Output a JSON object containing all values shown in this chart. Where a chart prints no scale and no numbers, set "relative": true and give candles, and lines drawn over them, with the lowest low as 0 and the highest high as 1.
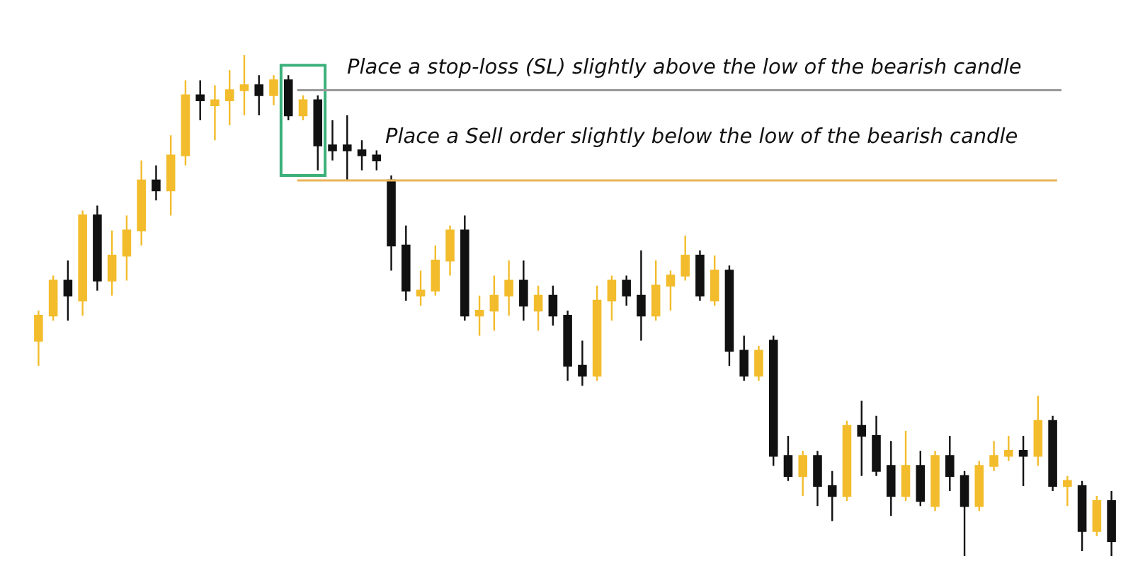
{
  "chart_data": {
    "type": "candlestick",
    "relative": true,
    "categories": [
      null,
      null,
      null,
      null,
      null,
      null,
      null,
      null,
      null,
      null,
      null,
      null,
      null,
      null,
      null,
      null,
      null,
      null,
      null,
      null,
      null,
      null,
      null,
      null,
      null,
      null,
      null,
      null,
      null,
      null,
      null,
      null,
      null,
      null,
      null,
      null,
      null,
      null,
      null,
      null,
      null,
      null,
      null,
      null,
      null,
      null,
      null,
      null,
      null,
      null,
      null,
      null,
      null,
      null,
      null,
      null,
      null,
      null,
      null,
      null,
      null,
      null,
      null,
      null,
      null,
      null,
      null,
      null,
      null,
      null,
      null,
      null,
      null,
      null
    ],
    "ohlc": [
      [
        0.43,
        0.49,
        0.38,
        0.48
      ],
      [
        0.48,
        0.56,
        0.47,
        0.55
      ],
      [
        0.55,
        0.59,
        0.47,
        0.52
      ],
      [
        0.51,
        0.69,
        0.48,
        0.68
      ],
      [
        0.68,
        0.7,
        0.53,
        0.55
      ],
      [
        0.55,
        0.65,
        0.52,
        0.6
      ],
      [
        0.6,
        0.68,
        0.55,
        0.65
      ],
      [
        0.65,
        0.79,
        0.62,
        0.75
      ],
      [
        0.75,
        0.78,
        0.71,
        0.73
      ],
      [
        0.73,
        0.84,
        0.68,
        0.8
      ],
      [
        0.8,
        0.95,
        0.78,
        0.92
      ],
      [
        0.92,
        0.95,
        0.87,
        0.91
      ],
      [
        0.9,
        0.94,
        0.83,
        0.91
      ],
      [
        0.91,
        0.97,
        0.86,
        0.93
      ],
      [
        0.93,
        1.0,
        0.88,
        0.94
      ],
      [
        0.94,
        0.96,
        0.88,
        0.92
      ],
      [
        0.92,
        0.96,
        0.9,
        0.95
      ],
      [
        0.95,
        0.96,
        0.87,
        0.88
      ],
      [
        0.88,
        0.92,
        0.87,
        0.91
      ],
      [
        0.91,
        0.92,
        0.77,
        0.82
      ],
      [
        0.82,
        0.87,
        0.79,
        0.81
      ],
      [
        0.82,
        0.88,
        0.75,
        0.81
      ],
      [
        0.81,
        0.83,
        0.77,
        0.8
      ],
      [
        0.8,
        0.81,
        0.77,
        0.79
      ],
      [
        0.75,
        0.76,
        0.57,
        0.62
      ],
      [
        0.62,
        0.66,
        0.51,
        0.53
      ],
      [
        0.52,
        0.57,
        0.5,
        0.53
      ],
      [
        0.53,
        0.62,
        0.52,
        0.59
      ],
      [
        0.59,
        0.66,
        0.56,
        0.65
      ],
      [
        0.65,
        0.68,
        0.47,
        0.48
      ],
      [
        0.48,
        0.52,
        0.44,
        0.49
      ],
      [
        0.49,
        0.56,
        0.45,
        0.52
      ],
      [
        0.52,
        0.59,
        0.48,
        0.55
      ],
      [
        0.55,
        0.59,
        0.47,
        0.5
      ],
      [
        0.49,
        0.54,
        0.45,
        0.52
      ],
      [
        0.52,
        0.54,
        0.46,
        0.48
      ],
      [
        0.48,
        0.49,
        0.35,
        0.38
      ],
      [
        0.38,
        0.43,
        0.34,
        0.36
      ],
      [
        0.36,
        0.54,
        0.35,
        0.51
      ],
      [
        0.51,
        0.56,
        0.47,
        0.55
      ],
      [
        0.55,
        0.56,
        0.5,
        0.52
      ],
      [
        0.52,
        0.61,
        0.43,
        0.48
      ],
      [
        0.48,
        0.59,
        0.47,
        0.54
      ],
      [
        0.54,
        0.57,
        0.49,
        0.56
      ],
      [
        0.56,
        0.64,
        0.55,
        0.6
      ],
      [
        0.6,
        0.61,
        0.51,
        0.52
      ],
      [
        0.51,
        0.6,
        0.5,
        0.57
      ],
      [
        0.57,
        0.58,
        0.38,
        0.41
      ],
      [
        0.41,
        0.44,
        0.35,
        0.36
      ],
      [
        0.36,
        0.42,
        0.35,
        0.41
      ],
      [
        0.43,
        0.44,
        0.18,
        0.2
      ],
      [
        0.2,
        0.24,
        0.15,
        0.16
      ],
      [
        0.16,
        0.21,
        0.12,
        0.2
      ],
      [
        0.2,
        0.21,
        0.1,
        0.14
      ],
      [
        0.14,
        0.17,
        0.07,
        0.12
      ],
      [
        0.12,
        0.27,
        0.11,
        0.26
      ],
      [
        0.26,
        0.31,
        0.16,
        0.24
      ],
      [
        0.24,
        0.28,
        0.16,
        0.17
      ],
      [
        0.18,
        0.23,
        0.08,
        0.12
      ],
      [
        0.12,
        0.25,
        0.11,
        0.18
      ],
      [
        0.18,
        0.21,
        0.1,
        0.11
      ],
      [
        0.1,
        0.21,
        0.09,
        0.2
      ],
      [
        0.2,
        0.24,
        0.13,
        0.16
      ],
      [
        0.16,
        0.17,
        0.0,
        0.1
      ],
      [
        0.1,
        0.19,
        0.09,
        0.18
      ],
      [
        0.18,
        0.23,
        0.17,
        0.2
      ],
      [
        0.2,
        0.24,
        0.19,
        0.21
      ],
      [
        0.21,
        0.24,
        0.14,
        0.2
      ],
      [
        0.2,
        0.32,
        0.18,
        0.27
      ],
      [
        0.27,
        0.28,
        0.13,
        0.14
      ],
      [
        0.14,
        0.16,
        0.1,
        0.15
      ],
      [
        0.14,
        0.15,
        0.01,
        0.05
      ],
      [
        0.05,
        0.12,
        0.04,
        0.11
      ],
      [
        0.11,
        0.13,
        0.0,
        0.03
      ]
    ],
    "colors": [
      "#f2bc2c",
      "#f2bc2c",
      "#111111",
      "#f2bc2c",
      "#111111",
      "#f2bc2c",
      "#f2bc2c",
      "#f2bc2c",
      "#111111",
      "#f2bc2c",
      "#f2bc2c",
      "#111111",
      "#f2bc2c",
      "#f2bc2c",
      "#f2bc2c",
      "#111111",
      "#f2bc2c",
      "#111111",
      "#f2bc2c",
      "#111111",
      "#111111",
      "#111111",
      "#111111",
      "#111111",
      "#111111",
      "#111111",
      "#f2bc2c",
      "#f2bc2c",
      "#f2bc2c",
      "#111111",
      "#f2bc2c",
      "#f2bc2c",
      "#f2bc2c",
      "#111111",
      "#f2bc2c",
      "#111111",
      "#111111",
      "#111111",
      "#f2bc2c",
      "#f2bc2c",
      "#111111",
      "#111111",
      "#f2bc2c",
      "#f2bc2c",
      "#f2bc2c",
      "#111111",
      "#f2bc2c",
      "#111111",
      "#111111",
      "#f2bc2c",
      "#111111",
      "#111111",
      "#f2bc2c",
      "#111111",
      "#111111",
      "#f2bc2c",
      "#111111",
      "#111111",
      "#111111",
      "#f2bc2c",
      "#111111",
      "#f2bc2c",
      "#111111",
      "#111111",
      "#f2bc2c",
      "#f2bc2c",
      "#f2bc2c",
      "#111111",
      "#f2bc2c",
      "#111111",
      "#f2bc2c",
      "#111111",
      "#f2bc2c",
      "#111111"
    ],
    "ref_lines": [
      {
        "axis": "y",
        "value": 0.93,
        "label": "Place a stop-loss (SL) slightly above the low of the bearish candle",
        "color": "#999999"
      },
      {
        "axis": "y",
        "value": 0.75,
        "label": "Place a Sell order slightly below the low of the bearish candle",
        "color": "#e8b35a"
      }
    ]
  }
}
